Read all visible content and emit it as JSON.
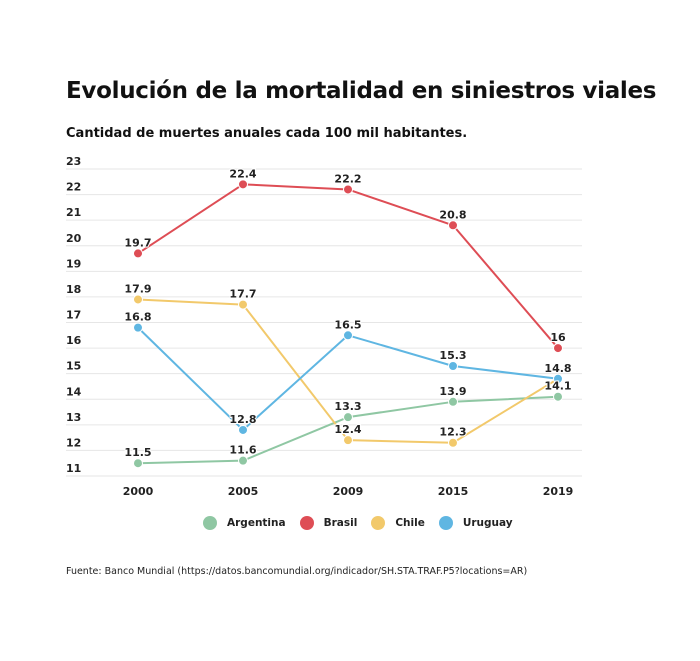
{
  "chart_data": {
    "type": "line",
    "title": "Evolución de la mortalidad en siniestros viales",
    "subtitle": "Cantidad de muertes anuales cada 100 mil habitantes.",
    "xlabel": "",
    "ylabel": "",
    "categories": [
      "2000",
      "2005",
      "2009",
      "2015",
      "2019"
    ],
    "ylim": [
      11,
      23
    ],
    "yticks": [
      "23",
      "22",
      "21",
      "20",
      "19",
      "18",
      "17",
      "16",
      "15",
      "14",
      "13",
      "12",
      "11"
    ],
    "grid": true,
    "legend_position": "bottom",
    "series": [
      {
        "name": "Argentina",
        "color": "#8fc7a3",
        "values": [
          11.5,
          11.6,
          13.3,
          13.9,
          14.1
        ],
        "labels": [
          "11.5",
          "11.6",
          "13.3",
          "13.9",
          "14.1"
        ]
      },
      {
        "name": "Brasil",
        "color": "#de4d55",
        "values": [
          19.7,
          22.4,
          22.2,
          20.8,
          16
        ],
        "labels": [
          "19.7",
          "22.4",
          "22.2",
          "20.8",
          "16"
        ]
      },
      {
        "name": "Chile",
        "color": "#f2c96b",
        "values": [
          17.9,
          17.7,
          12.4,
          12.3,
          14.8
        ],
        "labels": [
          "17.9",
          "17.7",
          "12.4",
          "12.3",
          ""
        ]
      },
      {
        "name": "Uruguay",
        "color": "#5fb6e2",
        "values": [
          16.8,
          12.8,
          16.5,
          15.3,
          14.8
        ],
        "labels": [
          "16.8",
          "12.8",
          "16.5",
          "15.3",
          "14.8"
        ]
      }
    ],
    "source": "Fuente: Banco Mundial (https://datos.bancomundial.org/indicador/SH.STA.TRAF.P5?locations=AR)"
  },
  "legend": [
    {
      "label": "Argentina",
      "color": "#8fc7a3"
    },
    {
      "label": "Brasil",
      "color": "#de4d55"
    },
    {
      "label": "Chile",
      "color": "#f2c96b"
    },
    {
      "label": "Uruguay",
      "color": "#5fb6e2"
    }
  ]
}
